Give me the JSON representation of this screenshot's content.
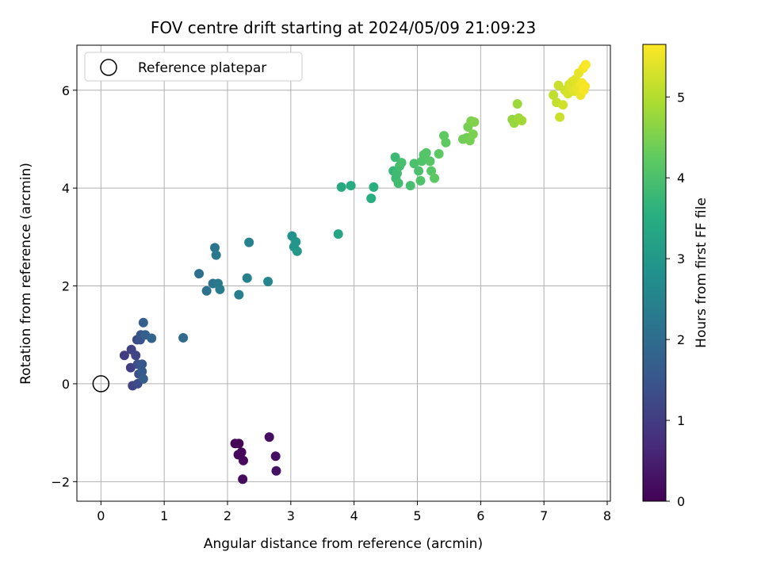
{
  "chart_data": {
    "type": "scatter",
    "title": "FOV centre drift starting at 2024/05/09 21:09:23",
    "xlabel": "Angular distance from reference (arcmin)",
    "ylabel": "Rotation from reference (arcmin)",
    "xlim": [
      -0.38,
      8.05
    ],
    "ylim": [
      -2.4,
      6.92
    ],
    "xticks": [
      0,
      1,
      2,
      3,
      4,
      5,
      6,
      7,
      8
    ],
    "yticks": [
      -2,
      0,
      2,
      4,
      6
    ],
    "grid": true,
    "legend": {
      "location": "top-left",
      "entries": [
        "Reference platepar"
      ]
    },
    "reference_point": {
      "x": 0,
      "y": 0
    },
    "colorbar": {
      "label": "Hours from first FF file",
      "range": [
        0,
        5.65
      ],
      "ticks": [
        0,
        1,
        2,
        3,
        4,
        5
      ],
      "colormap": "viridis"
    },
    "points": [
      {
        "x": 2.12,
        "y": -1.22,
        "c": 0.03
      },
      {
        "x": 2.18,
        "y": -1.22,
        "c": 0.06
      },
      {
        "x": 2.17,
        "y": -1.45,
        "c": 0.09
      },
      {
        "x": 2.22,
        "y": -1.4,
        "c": 0.12
      },
      {
        "x": 2.25,
        "y": -1.57,
        "c": 0.15
      },
      {
        "x": 2.24,
        "y": -1.95,
        "c": 0.18
      },
      {
        "x": 2.66,
        "y": -1.09,
        "c": 0.21
      },
      {
        "x": 2.76,
        "y": -1.48,
        "c": 0.24
      },
      {
        "x": 2.77,
        "y": -1.78,
        "c": 0.27
      },
      {
        "x": 0.37,
        "y": 0.58,
        "c": 1.0
      },
      {
        "x": 0.47,
        "y": 0.33,
        "c": 1.05
      },
      {
        "x": 0.48,
        "y": 0.7,
        "c": 1.1
      },
      {
        "x": 0.5,
        "y": -0.04,
        "c": 1.15
      },
      {
        "x": 0.55,
        "y": 0.58,
        "c": 1.2
      },
      {
        "x": 0.57,
        "y": 0.9,
        "c": 1.25
      },
      {
        "x": 0.58,
        "y": 0.0,
        "c": 1.3
      },
      {
        "x": 0.58,
        "y": 0.4,
        "c": 1.35
      },
      {
        "x": 0.6,
        "y": 0.2,
        "c": 1.4
      },
      {
        "x": 0.62,
        "y": 0.9,
        "c": 1.45
      },
      {
        "x": 0.63,
        "y": 1.0,
        "c": 1.5
      },
      {
        "x": 0.65,
        "y": 0.4,
        "c": 1.55
      },
      {
        "x": 0.65,
        "y": 0.25,
        "c": 1.6
      },
      {
        "x": 0.67,
        "y": 0.1,
        "c": 1.65
      },
      {
        "x": 0.67,
        "y": 1.25,
        "c": 1.7
      },
      {
        "x": 0.7,
        "y": 1.0,
        "c": 1.75
      },
      {
        "x": 0.8,
        "y": 0.93,
        "c": 1.8
      },
      {
        "x": 1.3,
        "y": 0.94,
        "c": 1.95
      },
      {
        "x": 1.55,
        "y": 2.25,
        "c": 2.05
      },
      {
        "x": 1.67,
        "y": 1.9,
        "c": 2.1
      },
      {
        "x": 1.77,
        "y": 2.05,
        "c": 2.15
      },
      {
        "x": 1.8,
        "y": 2.78,
        "c": 2.2
      },
      {
        "x": 1.82,
        "y": 2.63,
        "c": 2.25
      },
      {
        "x": 1.85,
        "y": 2.05,
        "c": 2.3
      },
      {
        "x": 1.88,
        "y": 1.93,
        "c": 2.35
      },
      {
        "x": 2.18,
        "y": 1.82,
        "c": 2.4
      },
      {
        "x": 2.31,
        "y": 2.16,
        "c": 2.45
      },
      {
        "x": 2.34,
        "y": 2.89,
        "c": 2.5
      },
      {
        "x": 2.64,
        "y": 2.09,
        "c": 2.6
      },
      {
        "x": 3.02,
        "y": 3.02,
        "c": 2.85
      },
      {
        "x": 3.05,
        "y": 2.8,
        "c": 2.9
      },
      {
        "x": 3.08,
        "y": 2.9,
        "c": 2.95
      },
      {
        "x": 3.1,
        "y": 2.71,
        "c": 3.0
      },
      {
        "x": 3.75,
        "y": 3.06,
        "c": 3.3
      },
      {
        "x": 3.8,
        "y": 4.02,
        "c": 3.4
      },
      {
        "x": 3.95,
        "y": 4.05,
        "c": 3.45
      },
      {
        "x": 4.27,
        "y": 3.79,
        "c": 3.5
      },
      {
        "x": 4.31,
        "y": 4.02,
        "c": 3.55
      },
      {
        "x": 4.62,
        "y": 4.35,
        "c": 3.75
      },
      {
        "x": 4.65,
        "y": 4.63,
        "c": 3.8
      },
      {
        "x": 4.66,
        "y": 4.2,
        "c": 3.85
      },
      {
        "x": 4.68,
        "y": 4.3,
        "c": 3.85
      },
      {
        "x": 4.7,
        "y": 4.1,
        "c": 3.9
      },
      {
        "x": 4.72,
        "y": 4.45,
        "c": 3.9
      },
      {
        "x": 4.75,
        "y": 4.52,
        "c": 3.95
      },
      {
        "x": 4.89,
        "y": 4.05,
        "c": 3.95
      },
      {
        "x": 4.95,
        "y": 4.5,
        "c": 4.0
      },
      {
        "x": 5.02,
        "y": 4.35,
        "c": 4.0
      },
      {
        "x": 5.05,
        "y": 4.15,
        "c": 4.05
      },
      {
        "x": 5.07,
        "y": 4.55,
        "c": 4.05
      },
      {
        "x": 5.1,
        "y": 4.68,
        "c": 4.1
      },
      {
        "x": 5.14,
        "y": 4.72,
        "c": 4.1
      },
      {
        "x": 5.2,
        "y": 4.55,
        "c": 4.15
      },
      {
        "x": 5.22,
        "y": 4.35,
        "c": 4.15
      },
      {
        "x": 5.27,
        "y": 4.2,
        "c": 4.2
      },
      {
        "x": 5.34,
        "y": 4.7,
        "c": 4.2
      },
      {
        "x": 5.42,
        "y": 5.07,
        "c": 4.25
      },
      {
        "x": 5.45,
        "y": 4.93,
        "c": 4.25
      },
      {
        "x": 5.72,
        "y": 5.0,
        "c": 4.4
      },
      {
        "x": 5.78,
        "y": 5.03,
        "c": 4.4
      },
      {
        "x": 5.8,
        "y": 5.25,
        "c": 4.45
      },
      {
        "x": 5.83,
        "y": 4.97,
        "c": 4.45
      },
      {
        "x": 5.85,
        "y": 5.37,
        "c": 4.5
      },
      {
        "x": 5.88,
        "y": 5.1,
        "c": 4.5
      },
      {
        "x": 5.9,
        "y": 5.35,
        "c": 4.55
      },
      {
        "x": 6.5,
        "y": 5.4,
        "c": 4.7
      },
      {
        "x": 6.53,
        "y": 5.33,
        "c": 4.75
      },
      {
        "x": 6.58,
        "y": 5.72,
        "c": 4.8
      },
      {
        "x": 6.6,
        "y": 5.43,
        "c": 4.8
      },
      {
        "x": 6.65,
        "y": 5.38,
        "c": 4.85
      },
      {
        "x": 7.15,
        "y": 5.9,
        "c": 5.1
      },
      {
        "x": 7.2,
        "y": 5.75,
        "c": 5.15
      },
      {
        "x": 7.23,
        "y": 6.1,
        "c": 5.2
      },
      {
        "x": 7.25,
        "y": 5.45,
        "c": 5.2
      },
      {
        "x": 7.3,
        "y": 5.7,
        "c": 5.25
      },
      {
        "x": 7.33,
        "y": 6.0,
        "c": 5.25
      },
      {
        "x": 7.38,
        "y": 5.93,
        "c": 5.3
      },
      {
        "x": 7.4,
        "y": 6.12,
        "c": 5.3
      },
      {
        "x": 7.43,
        "y": 6.05,
        "c": 5.35
      },
      {
        "x": 7.45,
        "y": 6.18,
        "c": 5.35
      },
      {
        "x": 7.48,
        "y": 5.98,
        "c": 5.4
      },
      {
        "x": 7.5,
        "y": 6.22,
        "c": 5.4
      },
      {
        "x": 7.52,
        "y": 6.05,
        "c": 5.45
      },
      {
        "x": 7.55,
        "y": 6.35,
        "c": 5.45
      },
      {
        "x": 7.57,
        "y": 6.1,
        "c": 5.5
      },
      {
        "x": 7.58,
        "y": 5.9,
        "c": 5.5
      },
      {
        "x": 7.6,
        "y": 6.15,
        "c": 5.55
      },
      {
        "x": 7.62,
        "y": 6.45,
        "c": 5.55
      },
      {
        "x": 7.63,
        "y": 6.0,
        "c": 5.6
      },
      {
        "x": 7.65,
        "y": 6.08,
        "c": 5.6
      },
      {
        "x": 7.66,
        "y": 6.52,
        "c": 5.62
      }
    ]
  }
}
